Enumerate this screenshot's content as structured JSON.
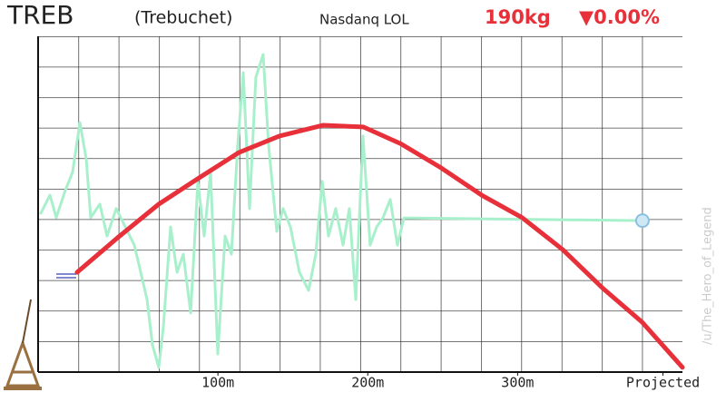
{
  "chart_data": {
    "type": "line",
    "title": "TREB",
    "subtitle": "(Trebuchet)",
    "exchange": "Nasdanq LOL",
    "price": "190kg",
    "change": "▼0.00%",
    "watermark": "/u/The_Hero_of_Legend",
    "xlim": [
      -20,
      410
    ],
    "ylim": [
      0,
      100
    ],
    "xticks": [
      {
        "value": 100,
        "label": "100m"
      },
      {
        "value": 200,
        "label": "200m"
      },
      {
        "value": 300,
        "label": "300m"
      },
      {
        "value": 397,
        "label": "Projected"
      }
    ],
    "series": [
      {
        "name": "price",
        "color": "#a8f0cc",
        "x": [
          -18.2,
          -12.1,
          -7.9,
          -1.9,
          3.0,
          7.9,
          12.1,
          15.1,
          21.2,
          26.0,
          32.1,
          38.2,
          44.2,
          48.5,
          52.7,
          56.3,
          60.5,
          63.6,
          68.4,
          72.7,
          76.9,
          81.8,
          86.6,
          90.8,
          95.1,
          99.9,
          104.8,
          109.0,
          113.2,
          116.9,
          121.1,
          125.3,
          130.2,
          133.8,
          139.3,
          143.5,
          148.4,
          154.4,
          160.5,
          165.3,
          169.6,
          173.8,
          178.6,
          183.5,
          187.7,
          192.0,
          196.8,
          201.6,
          205.9,
          210.1,
          215.0,
          219.8,
          224.1,
          383.3
        ],
        "values": [
          47.3,
          52.7,
          46.0,
          54.1,
          59.5,
          74.3,
          63.5,
          46.0,
          50.0,
          40.5,
          48.7,
          43.2,
          37.8,
          29.7,
          21.6,
          8.1,
          1.4,
          13.5,
          43.2,
          29.7,
          35.1,
          17.6,
          56.8,
          40.5,
          59.5,
          5.4,
          40.5,
          35.1,
          67.6,
          89.2,
          48.7,
          87.8,
          94.6,
          67.6,
          41.9,
          48.7,
          43.2,
          29.7,
          24.3,
          35.1,
          56.8,
          40.5,
          48.7,
          37.8,
          48.7,
          21.6,
          70.3,
          37.8,
          43.2,
          45.9,
          51.4,
          37.8,
          45.9,
          45.1
        ]
      },
      {
        "name": "trajectory",
        "color": "#e8303a",
        "x": [
          6,
          33,
          60.5,
          88,
          114,
          141,
          170,
          197,
          222,
          249,
          276,
          303,
          330,
          357,
          383,
          410
        ],
        "values": [
          29.7,
          40,
          50,
          58,
          65.4,
          70.3,
          73.5,
          73,
          68,
          60.8,
          52.7,
          46,
          36.5,
          24.9,
          14.9,
          1.4
        ]
      }
    ]
  }
}
